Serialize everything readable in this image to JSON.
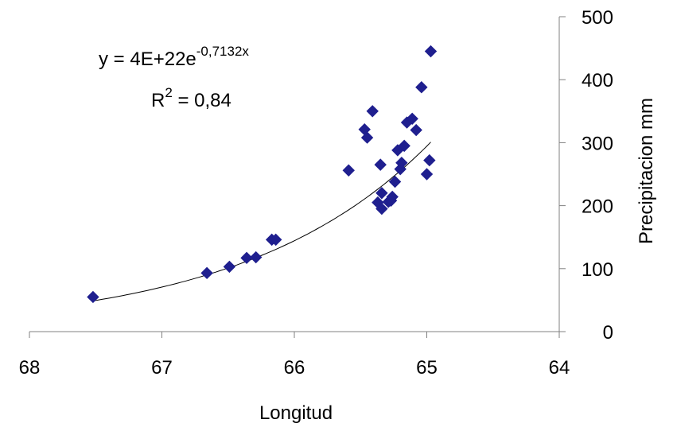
{
  "chart_data": {
    "type": "scatter",
    "x_axis": {
      "label": "Longitud",
      "range": [
        68,
        64
      ],
      "reversed": true,
      "ticks": [
        68,
        67,
        66,
        65,
        64
      ],
      "tick_labels": [
        "68",
        "67",
        "66",
        "65",
        "64"
      ]
    },
    "y_axis": {
      "label": "Precipitacion mm",
      "range": [
        0,
        500
      ],
      "position": "right",
      "ticks": [
        0,
        100,
        200,
        300,
        400,
        500
      ],
      "tick_labels": [
        "0",
        "100",
        "200",
        "300",
        "400",
        "500"
      ]
    },
    "grid": false,
    "legend": "none",
    "marker": {
      "shape": "diamond",
      "color": "#1F1F8F"
    },
    "points": [
      {
        "x": 67.52,
        "y": 55
      },
      {
        "x": 66.66,
        "y": 93
      },
      {
        "x": 66.49,
        "y": 103
      },
      {
        "x": 66.36,
        "y": 117
      },
      {
        "x": 66.29,
        "y": 118
      },
      {
        "x": 66.17,
        "y": 146
      },
      {
        "x": 66.14,
        "y": 146
      },
      {
        "x": 65.59,
        "y": 256
      },
      {
        "x": 65.47,
        "y": 321
      },
      {
        "x": 65.45,
        "y": 308
      },
      {
        "x": 65.41,
        "y": 350
      },
      {
        "x": 65.37,
        "y": 205
      },
      {
        "x": 65.35,
        "y": 265
      },
      {
        "x": 65.34,
        "y": 220
      },
      {
        "x": 65.34,
        "y": 195
      },
      {
        "x": 65.29,
        "y": 206
      },
      {
        "x": 65.27,
        "y": 208
      },
      {
        "x": 65.26,
        "y": 214
      },
      {
        "x": 65.24,
        "y": 238
      },
      {
        "x": 65.22,
        "y": 288
      },
      {
        "x": 65.2,
        "y": 258
      },
      {
        "x": 65.19,
        "y": 268
      },
      {
        "x": 65.17,
        "y": 295
      },
      {
        "x": 65.15,
        "y": 332
      },
      {
        "x": 65.11,
        "y": 338
      },
      {
        "x": 65.08,
        "y": 320
      },
      {
        "x": 65.04,
        "y": 388
      },
      {
        "x": 65.0,
        "y": 250
      },
      {
        "x": 64.98,
        "y": 272
      },
      {
        "x": 64.97,
        "y": 445
      }
    ],
    "trendline": {
      "type": "exponential",
      "a": 4e+22,
      "b": -0.7132,
      "x_from": 67.52,
      "x_to": 64.97
    },
    "annotations": {
      "equation_main": "y = 4E+22e",
      "equation_exponent": "-0,7132x",
      "r2_label": "R",
      "r2_sup": "2",
      "r2_value": " = 0,84"
    }
  }
}
